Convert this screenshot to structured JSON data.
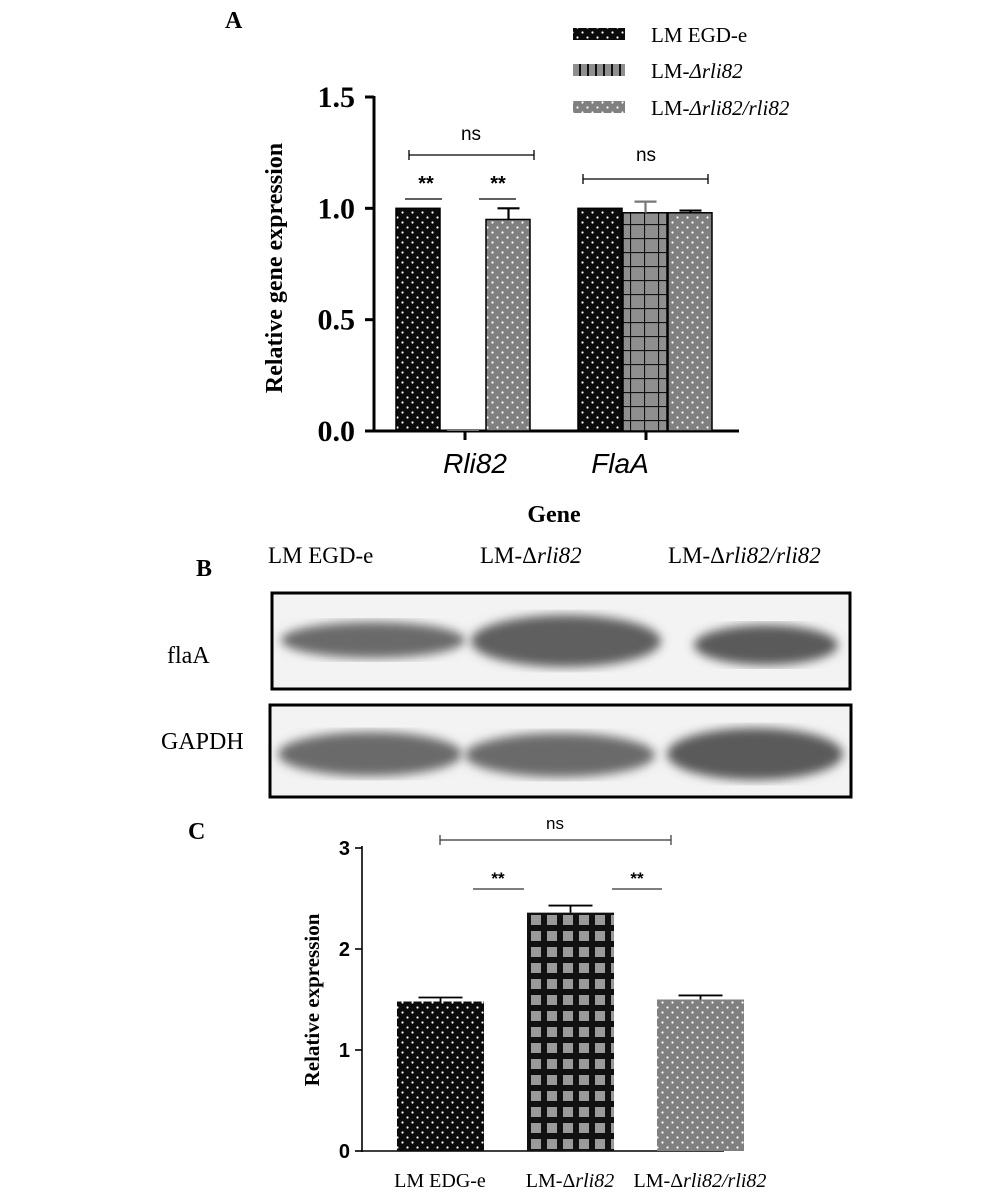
{
  "panel_labels": {
    "a": "A",
    "b": "B",
    "c": "C"
  },
  "colors": {
    "dark": "#0b0b0b",
    "mid": "#8c8c8c",
    "light": "#7e7e7e",
    "dot": "#ffffff"
  },
  "chart_data": [
    {
      "id": "A",
      "type": "bar",
      "ylabel": "Relative gene expression",
      "xlabel": "Gene",
      "ylim": [
        0,
        1.5
      ],
      "yticks": [
        "0.0",
        "0.5",
        "1.0",
        "1.5"
      ],
      "categories": [
        "Rli82",
        "FlaA"
      ],
      "series": [
        {
          "name": "LM EGD-e",
          "values": [
            1.0,
            1.0
          ],
          "errors": [
            0.0,
            0.0
          ]
        },
        {
          "name": "LM-Δrli82",
          "values": [
            0.0,
            0.98
          ],
          "errors": [
            0.0,
            0.05
          ]
        },
        {
          "name": "LM-Δrli82/rli82",
          "values": [
            0.95,
            0.98
          ],
          "errors": [
            0.05,
            0.01
          ]
        }
      ],
      "legend": {
        "placement": "top-right",
        "entries": [
          {
            "pre": "LM EGD-e",
            "it": ""
          },
          {
            "pre": "LM-",
            "it": "Δrli82"
          },
          {
            "pre": "LM-",
            "it": "Δrli82/rli82"
          }
        ]
      },
      "annotations": {
        "ns": "ns",
        "sig": "**"
      }
    },
    {
      "id": "C",
      "type": "bar",
      "ylabel": "Relative expression",
      "ylim": [
        0,
        3
      ],
      "yticks": [
        "0",
        "1",
        "2",
        "3"
      ],
      "categories": [
        "LM EDG-e",
        "LM-Δrli82",
        "LM-Δrli82/rli82"
      ],
      "category_labels": [
        {
          "pre": "LM EDG-e",
          "it": ""
        },
        {
          "pre": "LM-Δ",
          "it": "rli82"
        },
        {
          "pre": "LM-Δ",
          "it": "rli82/rli82"
        }
      ],
      "values": [
        1.48,
        2.36,
        1.5
      ],
      "errors": [
        0.04,
        0.07,
        0.04
      ],
      "annotations": {
        "ns": "ns",
        "sig": "**"
      }
    }
  ],
  "blot": {
    "lanes": [
      {
        "pre": "LM EGD-e",
        "it": ""
      },
      {
        "pre": "LM-Δ",
        "it": "rli82"
      },
      {
        "pre": "LM-Δ",
        "it": "rli82/rli82"
      }
    ],
    "rows": [
      "flaA",
      "GAPDH"
    ]
  }
}
